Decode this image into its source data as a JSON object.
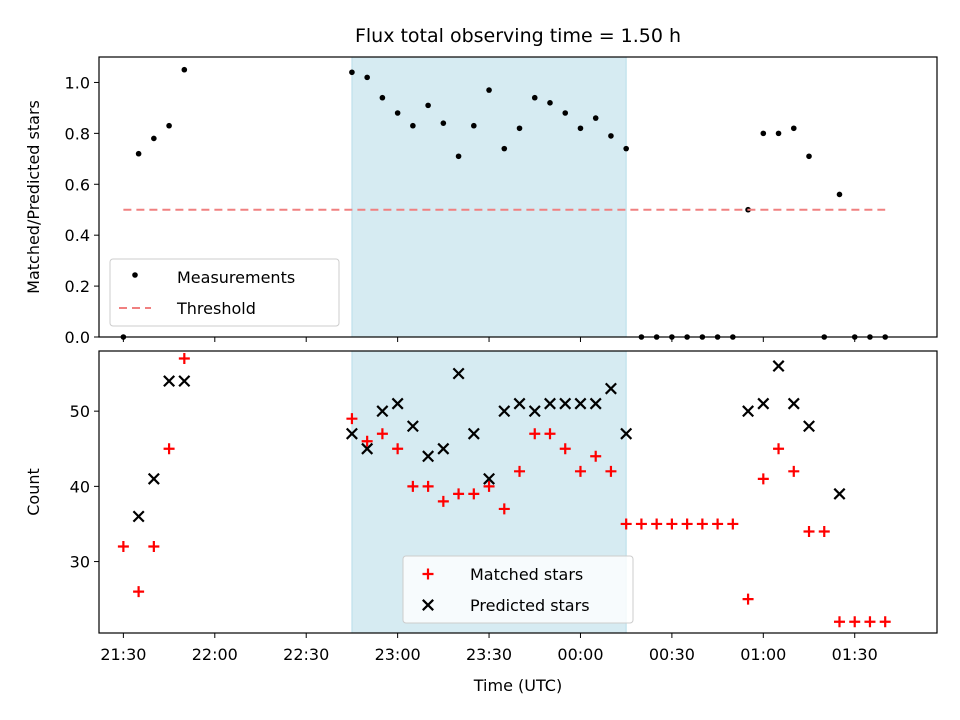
{
  "chart_data": [
    {
      "type": "scatter",
      "title": "Flux total observing time = 1.50 h",
      "ylabel": "Matched/Predicted stars",
      "xlabel": "",
      "ylim": [
        0,
        1.1
      ],
      "yticks": [
        "0.0",
        "0.2",
        "0.4",
        "0.6",
        "0.8",
        "1.0"
      ],
      "xlim": [
        "21:22",
        "01:57"
      ],
      "highlight_span": [
        "22:45",
        "00:15"
      ],
      "grid": false,
      "legend_position": "lower-left",
      "series": [
        {
          "name": "Measurements",
          "color": "#000000",
          "marker": "dot",
          "points": [
            [
              "21:30",
              0.0
            ],
            [
              "21:35",
              0.72
            ],
            [
              "21:40",
              0.78
            ],
            [
              "21:45",
              0.83
            ],
            [
              "21:50",
              1.05
            ],
            [
              "22:45",
              1.04
            ],
            [
              "22:50",
              1.02
            ],
            [
              "22:55",
              0.94
            ],
            [
              "23:00",
              0.88
            ],
            [
              "23:05",
              0.83
            ],
            [
              "23:10",
              0.91
            ],
            [
              "23:15",
              0.84
            ],
            [
              "23:20",
              0.71
            ],
            [
              "23:25",
              0.83
            ],
            [
              "23:30",
              0.97
            ],
            [
              "23:35",
              0.74
            ],
            [
              "23:40",
              0.82
            ],
            [
              "23:45",
              0.94
            ],
            [
              "23:50",
              0.92
            ],
            [
              "23:55",
              0.88
            ],
            [
              "00:00",
              0.82
            ],
            [
              "00:05",
              0.86
            ],
            [
              "00:10",
              0.79
            ],
            [
              "00:15",
              0.74
            ],
            [
              "00:20",
              0.0
            ],
            [
              "00:25",
              0.0
            ],
            [
              "00:30",
              0.0
            ],
            [
              "00:35",
              0.0
            ],
            [
              "00:40",
              0.0
            ],
            [
              "00:45",
              0.0
            ],
            [
              "00:50",
              0.0
            ],
            [
              "00:55",
              0.5
            ],
            [
              "01:00",
              0.8
            ],
            [
              "01:05",
              0.8
            ],
            [
              "01:10",
              0.82
            ],
            [
              "01:15",
              0.71
            ],
            [
              "01:20",
              0.0
            ],
            [
              "01:25",
              0.56
            ],
            [
              "01:30",
              0.0
            ],
            [
              "01:35",
              0.0
            ],
            [
              "01:40",
              0.0
            ]
          ]
        },
        {
          "name": "Threshold",
          "color": "#f08080",
          "style": "dashed",
          "points": [
            [
              "21:30",
              0.5
            ],
            [
              "01:40",
              0.5
            ]
          ]
        }
      ]
    },
    {
      "type": "scatter",
      "title": "",
      "ylabel": "Count",
      "xlabel": "Time (UTC)",
      "ylim": [
        20.5,
        58
      ],
      "yticks": [
        "30",
        "40",
        "50"
      ],
      "xticks": [
        "21:30",
        "22:00",
        "22:30",
        "23:00",
        "23:30",
        "00:00",
        "00:30",
        "01:00",
        "01:30"
      ],
      "xlim": [
        "21:22",
        "01:57"
      ],
      "highlight_span": [
        "22:45",
        "00:15"
      ],
      "grid": false,
      "legend_position": "lower-center",
      "series": [
        {
          "name": "Matched stars",
          "color": "#ff0000",
          "marker": "plus",
          "points": [
            [
              "21:30",
              32
            ],
            [
              "21:35",
              26
            ],
            [
              "21:40",
              32
            ],
            [
              "21:45",
              45
            ],
            [
              "21:50",
              57
            ],
            [
              "22:45",
              49
            ],
            [
              "22:50",
              46
            ],
            [
              "22:55",
              47
            ],
            [
              "23:00",
              45
            ],
            [
              "23:05",
              40
            ],
            [
              "23:10",
              40
            ],
            [
              "23:15",
              38
            ],
            [
              "23:20",
              39
            ],
            [
              "23:25",
              39
            ],
            [
              "23:30",
              40
            ],
            [
              "23:35",
              37
            ],
            [
              "23:40",
              42
            ],
            [
              "23:45",
              47
            ],
            [
              "23:50",
              47
            ],
            [
              "23:55",
              45
            ],
            [
              "00:00",
              42
            ],
            [
              "00:05",
              44
            ],
            [
              "00:10",
              42
            ],
            [
              "00:15",
              35
            ],
            [
              "00:20",
              35
            ],
            [
              "00:25",
              35
            ],
            [
              "00:30",
              35
            ],
            [
              "00:35",
              35
            ],
            [
              "00:40",
              35
            ],
            [
              "00:45",
              35
            ],
            [
              "00:50",
              35
            ],
            [
              "00:55",
              25
            ],
            [
              "01:00",
              41
            ],
            [
              "01:05",
              45
            ],
            [
              "01:10",
              42
            ],
            [
              "01:15",
              34
            ],
            [
              "01:20",
              34
            ],
            [
              "01:25",
              22
            ],
            [
              "01:30",
              22
            ],
            [
              "01:35",
              22
            ],
            [
              "01:40",
              22
            ]
          ]
        },
        {
          "name": "Predicted stars",
          "color": "#000000",
          "marker": "x",
          "points": [
            [
              "21:35",
              36
            ],
            [
              "21:40",
              41
            ],
            [
              "21:45",
              54
            ],
            [
              "21:50",
              54
            ],
            [
              "22:45",
              47
            ],
            [
              "22:50",
              45
            ],
            [
              "22:55",
              50
            ],
            [
              "23:00",
              51
            ],
            [
              "23:05",
              48
            ],
            [
              "23:10",
              44
            ],
            [
              "23:15",
              45
            ],
            [
              "23:20",
              55
            ],
            [
              "23:25",
              47
            ],
            [
              "23:30",
              41
            ],
            [
              "23:35",
              50
            ],
            [
              "23:40",
              51
            ],
            [
              "23:45",
              50
            ],
            [
              "23:50",
              51
            ],
            [
              "23:55",
              51
            ],
            [
              "00:00",
              51
            ],
            [
              "00:05",
              51
            ],
            [
              "00:10",
              53
            ],
            [
              "00:15",
              47
            ],
            [
              "00:55",
              50
            ],
            [
              "01:00",
              51
            ],
            [
              "01:05",
              56
            ],
            [
              "01:10",
              51
            ],
            [
              "01:15",
              48
            ],
            [
              "01:25",
              39
            ]
          ]
        }
      ]
    }
  ]
}
